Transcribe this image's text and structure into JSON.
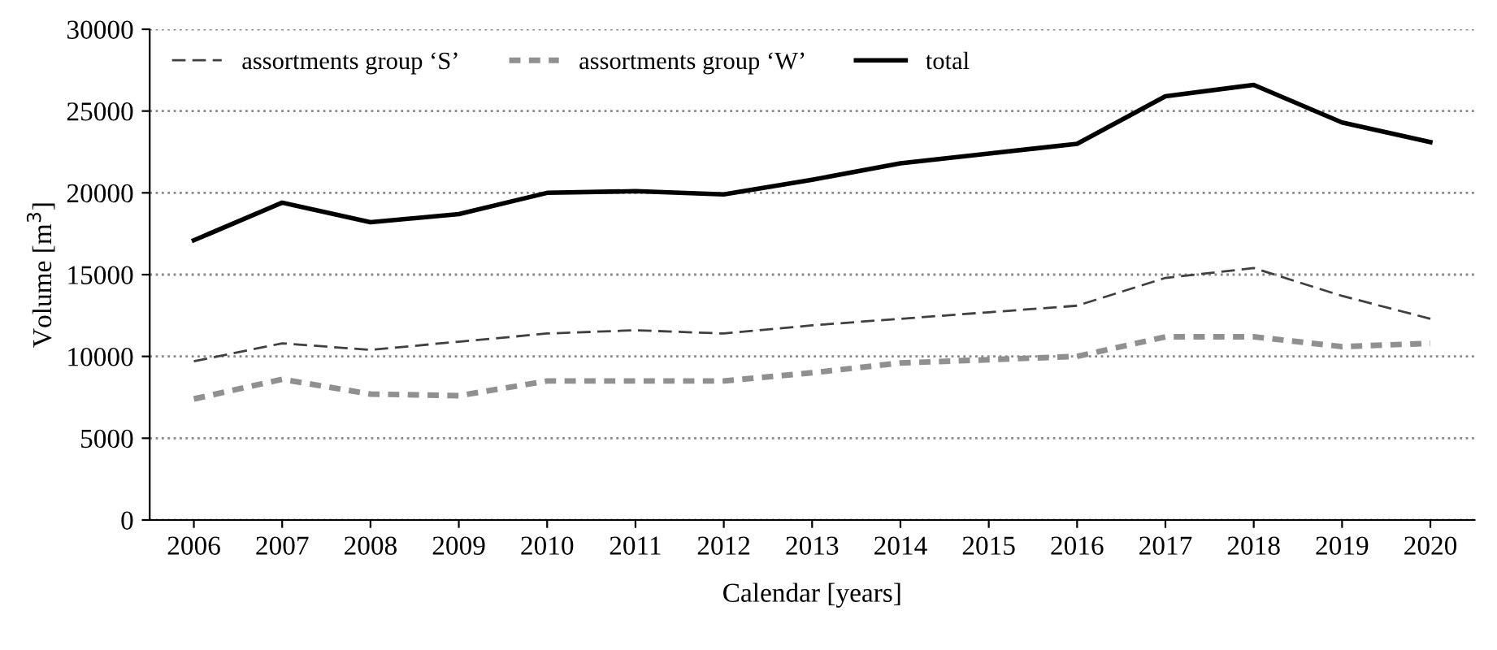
{
  "chart_data": {
    "type": "line",
    "xlabel": "Calendar [years]",
    "ylabel": "Volume [m$^{3}$]",
    "categories": [
      "2006",
      "2007",
      "2008",
      "2009",
      "2010",
      "2011",
      "2012",
      "2013",
      "2014",
      "2015",
      "2016",
      "2017",
      "2018",
      "2019",
      "2020"
    ],
    "series": [
      {
        "name": "assortments group ‘S’",
        "color": "#404040",
        "line_style": "dashed",
        "values": [
          9700,
          10800,
          10400,
          10900,
          11400,
          11600,
          11400,
          11900,
          12300,
          12700,
          13100,
          14800,
          15400,
          13700,
          12300
        ]
      },
      {
        "name": "assortments group ‘W’",
        "color": "#909090",
        "line_style": "dotted",
        "values": [
          7400,
          8600,
          7700,
          7600,
          8500,
          8500,
          8500,
          9000,
          9600,
          9800,
          10000,
          11200,
          11200,
          10600,
          10800
        ]
      },
      {
        "name": "total",
        "color": "#000000",
        "line_style": "solid",
        "values": [
          17100,
          19400,
          18200,
          18700,
          20000,
          20100,
          19900,
          20800,
          21800,
          22400,
          23000,
          25900,
          26600,
          24300,
          23100
        ]
      }
    ],
    "ylim": [
      0,
      30000
    ],
    "yticks": [
      0,
      5000,
      10000,
      15000,
      20000,
      25000,
      30000
    ],
    "grid": "y",
    "legend": "top left"
  }
}
